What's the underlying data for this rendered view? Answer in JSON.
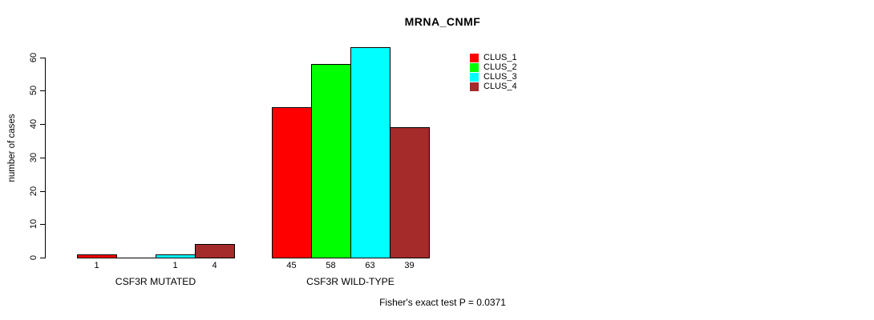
{
  "title": "MRNA_CNMF",
  "footer": "Fisher's exact test P = 0.0371",
  "chart_data": {
    "type": "bar",
    "title": "MRNA_CNMF",
    "xlabel": "",
    "ylabel": "number of cases",
    "ylim": [
      0,
      63
    ],
    "yticks": [
      0,
      10,
      20,
      30,
      40,
      50,
      60
    ],
    "grid": false,
    "legend_position": "top-right",
    "categories": [
      "CSF3R MUTATED",
      "CSF3R WILD-TYPE"
    ],
    "series": [
      {
        "name": "CLUS_1",
        "color": "#FF0000",
        "values": [
          1,
          45
        ]
      },
      {
        "name": "CLUS_2",
        "color": "#00FF00",
        "values": [
          0,
          58
        ]
      },
      {
        "name": "CLUS_3",
        "color": "#00FFFF",
        "values": [
          1,
          63
        ]
      },
      {
        "name": "CLUS_4",
        "color": "#A52A2A",
        "values": [
          4,
          39
        ]
      }
    ],
    "bar_labels": [
      [
        "1",
        "",
        "1",
        "4"
      ],
      [
        "45",
        "58",
        "63",
        "39"
      ]
    ],
    "annotation": "Fisher's exact test P = 0.0371",
    "bar_border_color": "#000000"
  }
}
